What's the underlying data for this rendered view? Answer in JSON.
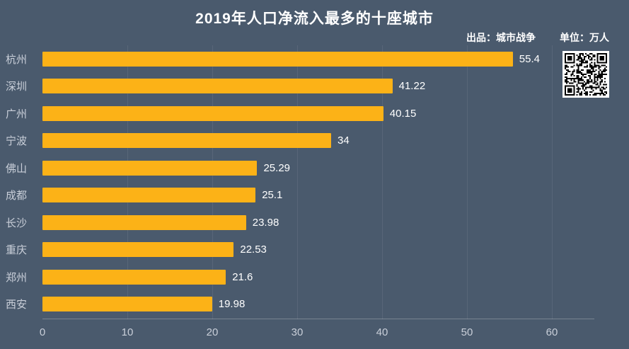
{
  "header": {
    "title": "2019年人口净流入最多的十座城市",
    "credit": "出品：城市战争",
    "unit": "单位：万人"
  },
  "chart_data": {
    "type": "bar",
    "orientation": "horizontal",
    "title": "2019年人口净流入最多的十座城市",
    "categories": [
      "杭州",
      "深圳",
      "广州",
      "宁波",
      "佛山",
      "成都",
      "长沙",
      "重庆",
      "郑州",
      "西安"
    ],
    "values": [
      55.4,
      41.22,
      40.15,
      34,
      25.29,
      25.1,
      23.98,
      22.53,
      21.6,
      19.98
    ],
    "value_labels": [
      "55.4",
      "41.22",
      "40.15",
      "34",
      "25.29",
      "25.1",
      "23.98",
      "22.53",
      "21.6",
      "19.98"
    ],
    "x_ticks": [
      0,
      10,
      20,
      30,
      40,
      50,
      60
    ],
    "xlim": [
      0,
      65
    ],
    "xlabel": "",
    "ylabel": "",
    "unit": "万人",
    "legend": "none",
    "grid": "faint-vertical",
    "bar_color": "#fcb217",
    "background_color": "#4a5a6d",
    "label_color": "#c9cfd9",
    "value_color": "#ffffff"
  }
}
